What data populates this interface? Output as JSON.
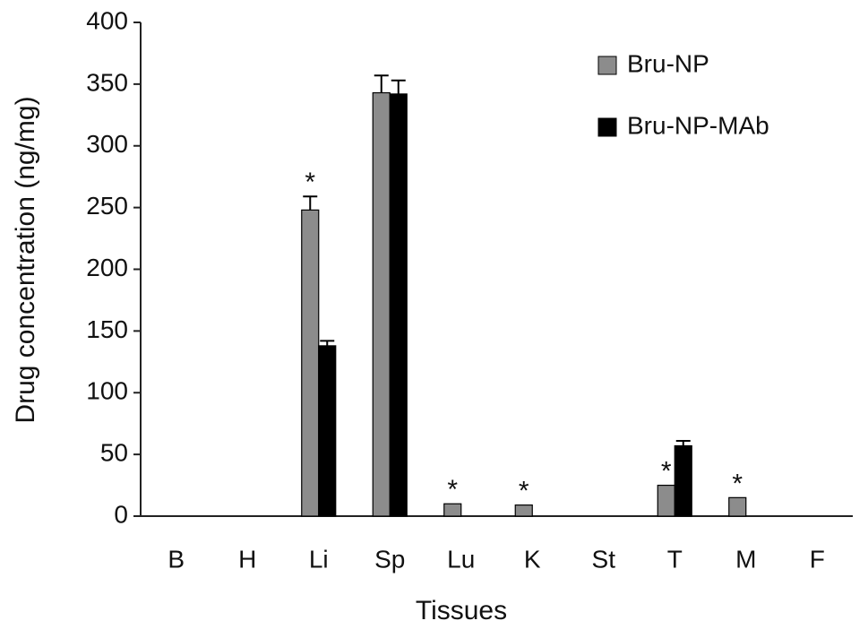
{
  "chart_data": {
    "type": "bar",
    "y_label": "Drug concentration (ng/mg)",
    "x_label": "Tissues",
    "categories": [
      "B",
      "H",
      "Li",
      "Sp",
      "Lu",
      "K",
      "St",
      "T",
      "M",
      "F"
    ],
    "series": [
      {
        "name": "Bru-NP",
        "color": "#8c8c8c",
        "values": [
          0,
          0,
          248,
          343,
          10,
          9,
          0,
          25,
          15,
          0
        ],
        "errors": [
          null,
          null,
          11,
          14,
          null,
          null,
          null,
          null,
          null,
          null
        ],
        "labels": [
          null,
          null,
          "*",
          null,
          "*",
          "*",
          null,
          "*",
          "*",
          null
        ]
      },
      {
        "name": "Bru-NP-MAb",
        "color": "#000000",
        "values": [
          0,
          0,
          138,
          342,
          0,
          0,
          0,
          57,
          0,
          0
        ],
        "errors": [
          null,
          null,
          4,
          11,
          null,
          null,
          null,
          4,
          null,
          null
        ],
        "labels": [
          null,
          null,
          null,
          null,
          null,
          null,
          null,
          null,
          null,
          null
        ]
      }
    ],
    "ylim": [
      0,
      400
    ],
    "yticks": [
      0,
      50,
      100,
      150,
      200,
      250,
      300,
      350,
      400
    ],
    "grid": false,
    "legend": "top-right"
  }
}
